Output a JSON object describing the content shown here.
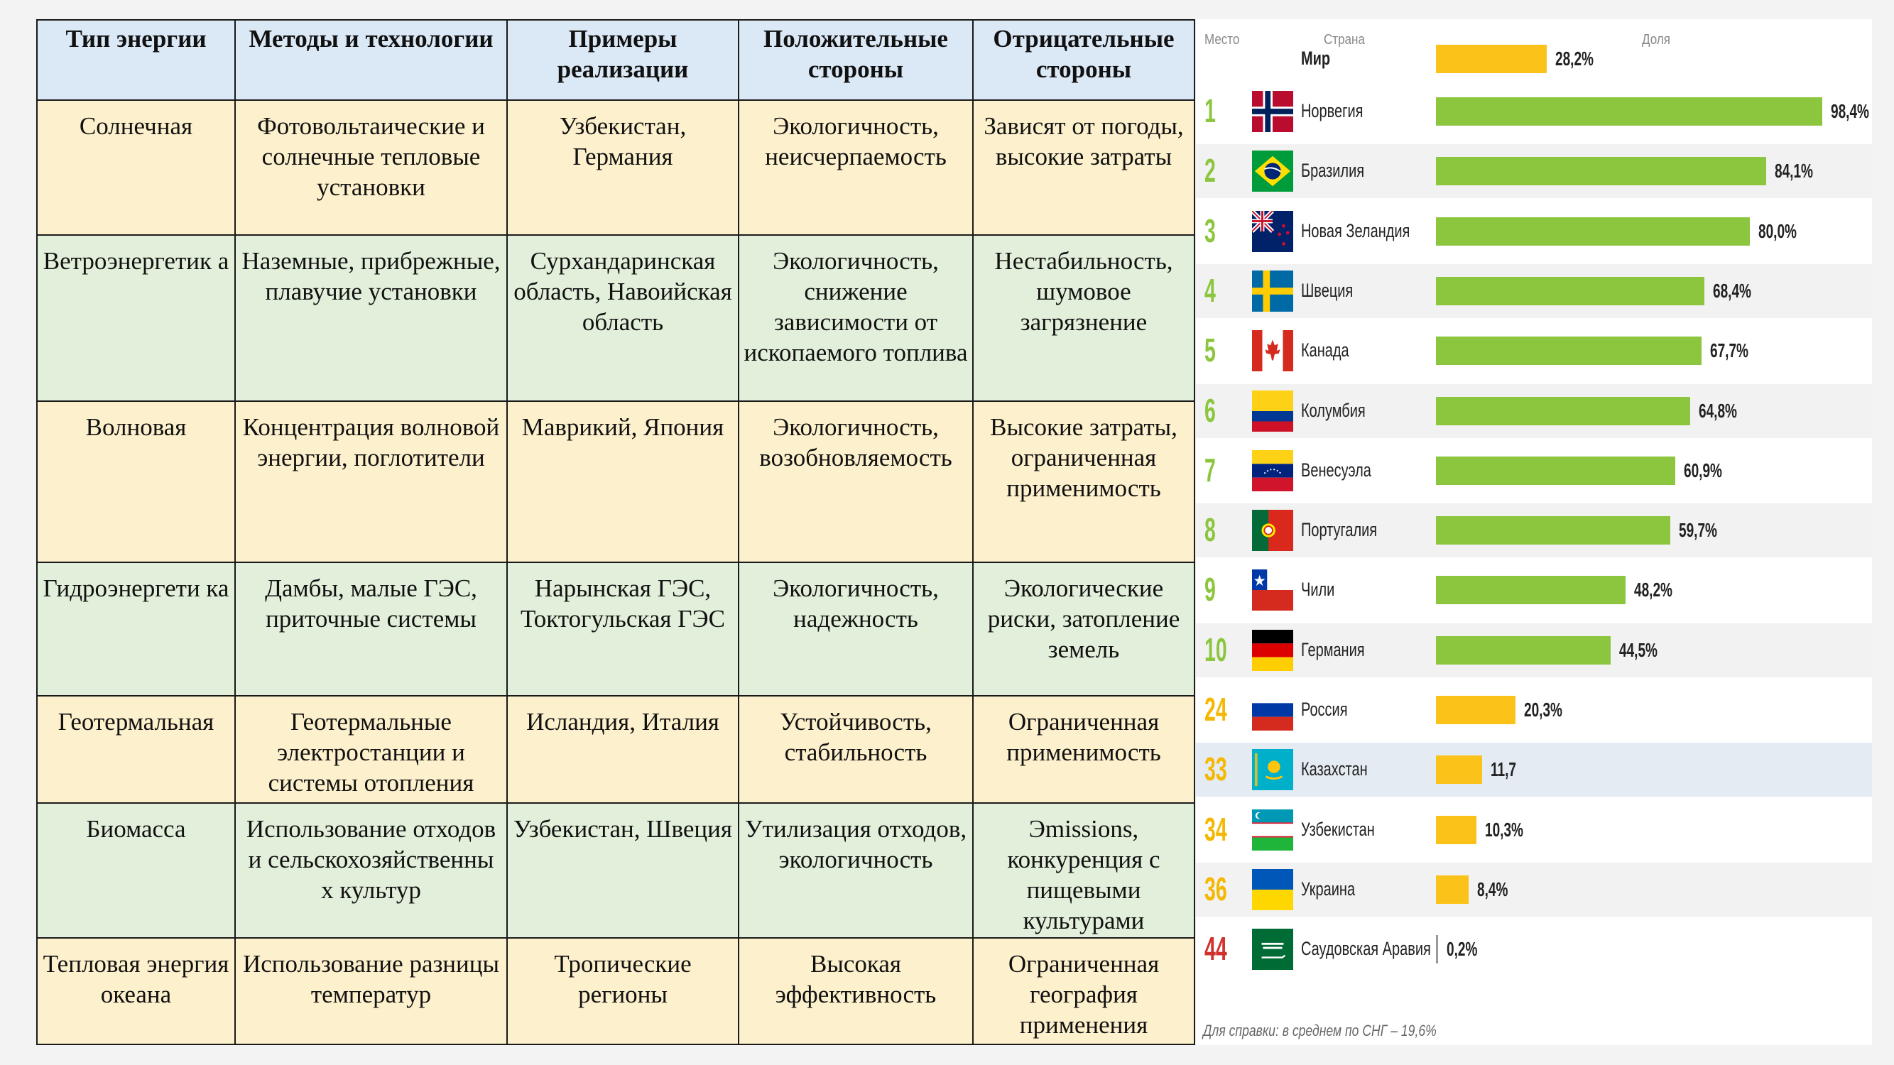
{
  "table": {
    "headers": [
      "Тип энергии",
      "Методы и технологии",
      "Примеры реализации",
      "Положительные стороны",
      "Отрицательные стороны"
    ],
    "rows": [
      [
        "Солнечная",
        "Фотовольтаические и солнечные тепловые установки",
        "Узбекистан, Германия",
        "Экологичность, неисчерпаемость",
        "Зависят от погоды, высокие затраты"
      ],
      [
        "Ветроэнергетик а",
        "Наземные, прибрежные, плавучие установки",
        "Сурхандаринская область, Навоийская область",
        "Экологичность, снижение зависимости от ископаемого топлива",
        "Нестабильность, шумовое загрязнение"
      ],
      [
        "Волновая",
        "Концентрация волновой энергии, поглотители",
        "Маврикий, Япония",
        "Экологичность, возобновляемость",
        "Высокие затраты, ограниченная применимость"
      ],
      [
        "Гидроэнергети ка",
        "Дамбы, малые ГЭС, приточные системы",
        "Нарынская ГЭС, Токтогульская ГЭС",
        "Экологичность, надежность",
        "Экологические риски, затопление земель"
      ],
      [
        "Геотермальная",
        "Геотермальные электростанции и системы отопления",
        "Исландия, Италия",
        "Устойчивость, стабильность",
        "Ограниченная применимость"
      ],
      [
        "Биомасса",
        "Использование отходов и сельскохозяйственны х культур",
        "Узбекистан, Швеция",
        "Утилизация отходов, экологичность",
        "Эmissions, конкуренция с пищевыми культурами"
      ],
      [
        "Тепловая энергия океана",
        "Использование разницы температур",
        "Тропические регионы",
        "Высокая эффективность",
        "Ограниченная география применения"
      ]
    ]
  },
  "chart_data": {
    "type": "bar",
    "headers": {
      "rank": "Место",
      "country": "Страна",
      "share": "Доля"
    },
    "world": {
      "label": "Мир",
      "value": 28.2,
      "value_label": "28,2%"
    },
    "rows": [
      {
        "rank": "1",
        "country": "Норвегия",
        "value": 98.4,
        "value_label": "98,4%",
        "color": "green",
        "rank_color": "green",
        "flag": "norway-flag"
      },
      {
        "rank": "2",
        "country": "Бразилия",
        "value": 84.1,
        "value_label": "84,1%",
        "color": "green",
        "rank_color": "green",
        "flag": "brazil-flag"
      },
      {
        "rank": "3",
        "country": "Новая Зеландия",
        "value": 80.0,
        "value_label": "80,0%",
        "color": "green",
        "rank_color": "green",
        "flag": "new-zealand-flag"
      },
      {
        "rank": "4",
        "country": "Швеция",
        "value": 68.4,
        "value_label": "68,4%",
        "color": "green",
        "rank_color": "green",
        "flag": "sweden-flag"
      },
      {
        "rank": "5",
        "country": "Канада",
        "value": 67.7,
        "value_label": "67,7%",
        "color": "green",
        "rank_color": "green",
        "flag": "canada-flag"
      },
      {
        "rank": "6",
        "country": "Колумбия",
        "value": 64.8,
        "value_label": "64,8%",
        "color": "green",
        "rank_color": "green",
        "flag": "colombia-flag"
      },
      {
        "rank": "7",
        "country": "Венесуэла",
        "value": 60.9,
        "value_label": "60,9%",
        "color": "green",
        "rank_color": "green",
        "flag": "venezuela-flag"
      },
      {
        "rank": "8",
        "country": "Португалия",
        "value": 59.7,
        "value_label": "59,7%",
        "color": "green",
        "rank_color": "green",
        "flag": "portugal-flag"
      },
      {
        "rank": "9",
        "country": "Чили",
        "value": 48.2,
        "value_label": "48,2%",
        "color": "green",
        "rank_color": "green",
        "flag": "chile-flag"
      },
      {
        "rank": "10",
        "country": "Германия",
        "value": 44.5,
        "value_label": "44,5%",
        "color": "green",
        "rank_color": "green",
        "flag": "germany-flag"
      },
      {
        "rank": "24",
        "country": "Россия",
        "value": 20.3,
        "value_label": "20,3%",
        "color": "yellow",
        "rank_color": "yellow",
        "flag": "russia-flag"
      },
      {
        "rank": "33",
        "country": "Казахстан",
        "value": 11.7,
        "value_label": "11,7",
        "color": "yellow",
        "rank_color": "yellow",
        "flag": "kazakhstan-flag",
        "highlight": true
      },
      {
        "rank": "34",
        "country": "Узбекистан",
        "value": 10.3,
        "value_label": "10,3%",
        "color": "yellow",
        "rank_color": "yellow",
        "flag": "uzbekistan-flag"
      },
      {
        "rank": "36",
        "country": "Украина",
        "value": 8.4,
        "value_label": "8,4%",
        "color": "yellow",
        "rank_color": "yellow",
        "flag": "ukraine-flag"
      },
      {
        "rank": "44",
        "country": "Саудовская Аравия",
        "value": 0.2,
        "value_label": "0,2%",
        "color": "yellow",
        "rank_color": "red",
        "flag": "saudi-arabia-flag"
      }
    ],
    "xlim": [
      0,
      100
    ],
    "footnote": "Для справки: в среднем по СНГ – 19,6%"
  }
}
